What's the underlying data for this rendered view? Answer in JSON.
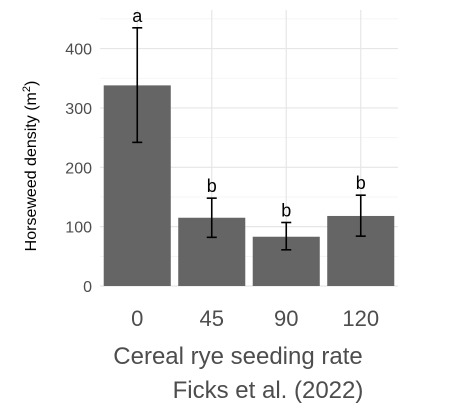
{
  "chart_data": {
    "type": "bar",
    "categories": [
      "0",
      "45",
      "90",
      "120"
    ],
    "values": [
      338,
      115,
      83,
      118
    ],
    "error_low": [
      242,
      82,
      61,
      84
    ],
    "error_high": [
      435,
      148,
      107,
      153
    ],
    "group_letters": [
      "a",
      "b",
      "b",
      "b"
    ],
    "xlabel": "Cereal rye seeding rate",
    "ylabel": "Horseweed density (m",
    "ylabel_superscript": "2",
    "ylabel_close": ")",
    "caption": "Ficks et al. (2022)",
    "ylim": [
      0,
      465
    ],
    "yticks": [
      0,
      100,
      200,
      300,
      400
    ],
    "grid": true,
    "legend": "none",
    "bar_color": "#656565"
  }
}
